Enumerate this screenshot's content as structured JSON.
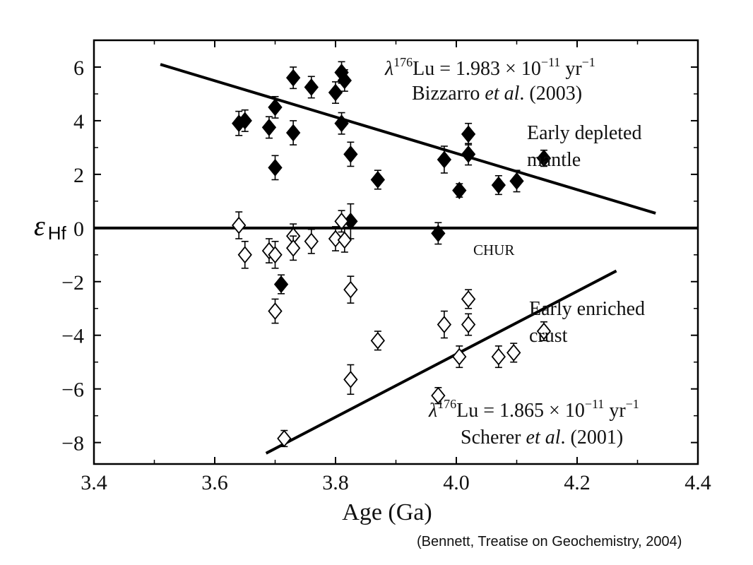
{
  "chart_data": {
    "type": "scatter",
    "xlabel": "Age (Ga)",
    "ylabel_main": "ε",
    "ylabel_sub": "Hf",
    "xlim": [
      3.4,
      4.4
    ],
    "ylim": [
      -8.8,
      7.0
    ],
    "x_ticks": [
      3.4,
      3.6,
      3.8,
      4.0,
      4.2,
      4.4
    ],
    "x_tick_labels": [
      "3.4",
      "3.6",
      "3.8",
      "4.0",
      "4.2",
      "4.4"
    ],
    "y_ticks": [
      6,
      4,
      2,
      0,
      -2,
      -4,
      -6,
      -8
    ],
    "y_tick_labels": [
      "6",
      "4",
      "2",
      "0",
      "−2",
      "−4",
      "−6",
      "−8"
    ],
    "grid": false,
    "series": [
      {
        "marker": "filled-diamond",
        "points": [
          {
            "x": 3.64,
            "y": 3.9,
            "err": 0.45
          },
          {
            "x": 3.65,
            "y": 4.0,
            "err": 0.4
          },
          {
            "x": 3.69,
            "y": 3.75,
            "err": 0.4
          },
          {
            "x": 3.7,
            "y": 4.5,
            "err": 0.4
          },
          {
            "x": 3.7,
            "y": 2.25,
            "err": 0.45
          },
          {
            "x": 3.73,
            "y": 5.6,
            "err": 0.4
          },
          {
            "x": 3.73,
            "y": 3.55,
            "err": 0.45
          },
          {
            "x": 3.76,
            "y": 5.25,
            "err": 0.4
          },
          {
            "x": 3.8,
            "y": 5.05,
            "err": 0.4
          },
          {
            "x": 3.81,
            "y": 5.8,
            "err": 0.4
          },
          {
            "x": 3.815,
            "y": 5.5,
            "err": 0.4
          },
          {
            "x": 3.81,
            "y": 3.9,
            "err": 0.4
          },
          {
            "x": 3.825,
            "y": 2.75,
            "err": 0.45
          },
          {
            "x": 3.825,
            "y": 0.25,
            "err": 0.65
          },
          {
            "x": 3.71,
            "y": -2.1,
            "err": 0.35
          },
          {
            "x": 3.87,
            "y": 1.8,
            "err": 0.35
          },
          {
            "x": 3.97,
            "y": -0.2,
            "err": 0.4
          },
          {
            "x": 3.98,
            "y": 2.55,
            "err": 0.5
          },
          {
            "x": 4.005,
            "y": 1.4,
            "err": 0.25
          },
          {
            "x": 4.02,
            "y": 3.5,
            "err": 0.4
          },
          {
            "x": 4.02,
            "y": 2.75,
            "err": 0.4
          },
          {
            "x": 4.07,
            "y": 1.6,
            "err": 0.35
          },
          {
            "x": 4.1,
            "y": 1.75,
            "err": 0.4
          },
          {
            "x": 4.145,
            "y": 2.6,
            "err": 0.3
          }
        ]
      },
      {
        "marker": "open-diamond",
        "points": [
          {
            "x": 3.64,
            "y": 0.1,
            "err": 0.5
          },
          {
            "x": 3.65,
            "y": -1.0,
            "err": 0.5
          },
          {
            "x": 3.69,
            "y": -0.85,
            "err": 0.45
          },
          {
            "x": 3.7,
            "y": -1.0,
            "err": 0.5
          },
          {
            "x": 3.7,
            "y": -3.1,
            "err": 0.45
          },
          {
            "x": 3.73,
            "y": -0.3,
            "err": 0.45
          },
          {
            "x": 3.73,
            "y": -0.75,
            "err": 0.45
          },
          {
            "x": 3.76,
            "y": -0.5,
            "err": 0.45
          },
          {
            "x": 3.8,
            "y": -0.4,
            "err": 0.45
          },
          {
            "x": 3.81,
            "y": 0.25,
            "err": 0.4
          },
          {
            "x": 3.815,
            "y": -0.45,
            "err": 0.45
          },
          {
            "x": 3.825,
            "y": -2.3,
            "err": 0.5
          },
          {
            "x": 3.825,
            "y": -5.65,
            "err": 0.55
          },
          {
            "x": 3.715,
            "y": -7.85,
            "err": 0.3
          },
          {
            "x": 3.87,
            "y": -4.2,
            "err": 0.35
          },
          {
            "x": 3.97,
            "y": -6.25,
            "err": 0.3
          },
          {
            "x": 3.98,
            "y": -3.6,
            "err": 0.5
          },
          {
            "x": 4.005,
            "y": -4.8,
            "err": 0.4
          },
          {
            "x": 4.02,
            "y": -2.65,
            "err": 0.35
          },
          {
            "x": 4.02,
            "y": -3.6,
            "err": 0.4
          },
          {
            "x": 4.07,
            "y": -4.8,
            "err": 0.4
          },
          {
            "x": 4.095,
            "y": -4.65,
            "err": 0.35
          },
          {
            "x": 4.145,
            "y": -3.85,
            "err": 0.35
          }
        ]
      }
    ],
    "lines": [
      {
        "x1": 3.51,
        "y1": 6.1,
        "x2": 4.33,
        "y2": 0.55
      },
      {
        "x1": 3.685,
        "y1": -8.4,
        "x2": 4.265,
        "y2": -1.6
      },
      {
        "x1": 3.4,
        "y1": 0.0,
        "x2": 4.4,
        "y2": 0.0
      }
    ],
    "annotations": {
      "top_formula_prefix": "λ",
      "top_formula_sup": "176",
      "top_formula_rest": "Lu = 1.983 × 10",
      "top_formula_exp": "−11",
      "top_formula_unit": " yr",
      "top_formula_unit_exp": "−1",
      "top_citation_author": "Bizzarro ",
      "top_citation_etal": "et al",
      "top_citation_year": ". (2003)",
      "depleted_line1": "Early depleted",
      "depleted_line2": "mantle",
      "chur": "CHUR",
      "enriched_line1": "Early enriched",
      "enriched_line2": "crust",
      "bottom_formula_prefix": "λ",
      "bottom_formula_sup": "176",
      "bottom_formula_rest": "Lu = 1.865 × 10",
      "bottom_formula_exp": "−11",
      "bottom_formula_unit": " yr",
      "bottom_formula_unit_exp": "−1",
      "bottom_citation_author": "Scherer ",
      "bottom_citation_etal": "et al",
      "bottom_citation_year": ". (2001)"
    }
  },
  "citation": "(Bennett, Treatise on Geochemistry, 2004)"
}
